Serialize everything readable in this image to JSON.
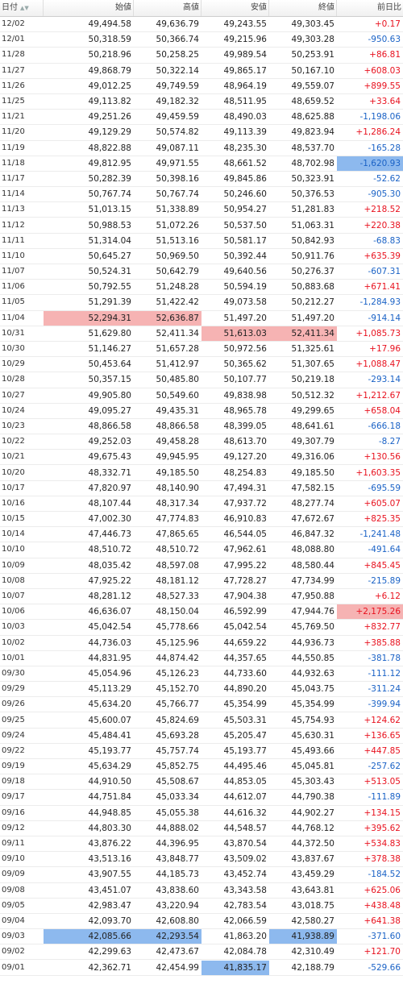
{
  "headers": {
    "date": "日付",
    "open": "始値",
    "high": "高値",
    "low": "安値",
    "close": "終値",
    "change": "前日比",
    "sort_icons": "▲▼"
  },
  "rows": [
    {
      "date": "12/02",
      "open": "49,494.58",
      "high": "49,636.79",
      "low": "49,243.55",
      "close": "49,303.45",
      "change": "+0.17",
      "dir": "up"
    },
    {
      "date": "12/01",
      "open": "50,318.59",
      "high": "50,366.74",
      "low": "49,215.96",
      "close": "49,303.28",
      "change": "-950.63",
      "dir": "dn"
    },
    {
      "date": "11/28",
      "open": "50,218.96",
      "high": "50,258.25",
      "low": "49,989.54",
      "close": "50,253.91",
      "change": "+86.81",
      "dir": "up"
    },
    {
      "date": "11/27",
      "open": "49,868.79",
      "high": "50,322.14",
      "low": "49,865.17",
      "close": "50,167.10",
      "change": "+608.03",
      "dir": "up"
    },
    {
      "date": "11/26",
      "open": "49,012.25",
      "high": "49,749.59",
      "low": "48,964.19",
      "close": "49,559.07",
      "change": "+899.55",
      "dir": "up"
    },
    {
      "date": "11/25",
      "open": "49,113.82",
      "high": "49,182.32",
      "low": "48,511.95",
      "close": "48,659.52",
      "change": "+33.64",
      "dir": "up"
    },
    {
      "date": "11/21",
      "open": "49,251.26",
      "high": "49,459.59",
      "low": "48,490.03",
      "close": "48,625.88",
      "change": "-1,198.06",
      "dir": "dn"
    },
    {
      "date": "11/20",
      "open": "49,129.29",
      "high": "50,574.82",
      "low": "49,113.39",
      "close": "49,823.94",
      "change": "+1,286.24",
      "dir": "up"
    },
    {
      "date": "11/19",
      "open": "48,822.88",
      "high": "49,087.11",
      "low": "48,235.30",
      "close": "48,537.70",
      "change": "-165.28",
      "dir": "dn"
    },
    {
      "date": "11/18",
      "open": "49,812.95",
      "high": "49,971.55",
      "low": "48,661.52",
      "close": "48,702.98",
      "change": "-1,620.93",
      "dir": "dn",
      "hl": {
        "change": "blue"
      }
    },
    {
      "date": "11/17",
      "open": "50,282.39",
      "high": "50,398.16",
      "low": "49,845.86",
      "close": "50,323.91",
      "change": "-52.62",
      "dir": "dn"
    },
    {
      "date": "11/14",
      "open": "50,767.74",
      "high": "50,767.74",
      "low": "50,246.60",
      "close": "50,376.53",
      "change": "-905.30",
      "dir": "dn"
    },
    {
      "date": "11/13",
      "open": "51,013.15",
      "high": "51,338.89",
      "low": "50,954.27",
      "close": "51,281.83",
      "change": "+218.52",
      "dir": "up"
    },
    {
      "date": "11/12",
      "open": "50,988.53",
      "high": "51,072.26",
      "low": "50,537.50",
      "close": "51,063.31",
      "change": "+220.38",
      "dir": "up"
    },
    {
      "date": "11/11",
      "open": "51,314.04",
      "high": "51,513.16",
      "low": "50,581.17",
      "close": "50,842.93",
      "change": "-68.83",
      "dir": "dn"
    },
    {
      "date": "11/10",
      "open": "50,645.27",
      "high": "50,969.50",
      "low": "50,392.44",
      "close": "50,911.76",
      "change": "+635.39",
      "dir": "up"
    },
    {
      "date": "11/07",
      "open": "50,524.31",
      "high": "50,642.79",
      "low": "49,640.56",
      "close": "50,276.37",
      "change": "-607.31",
      "dir": "dn"
    },
    {
      "date": "11/06",
      "open": "50,792.55",
      "high": "51,248.28",
      "low": "50,594.19",
      "close": "50,883.68",
      "change": "+671.41",
      "dir": "up"
    },
    {
      "date": "11/05",
      "open": "51,291.39",
      "high": "51,422.42",
      "low": "49,073.58",
      "close": "50,212.27",
      "change": "-1,284.93",
      "dir": "dn"
    },
    {
      "date": "11/04",
      "open": "52,294.31",
      "high": "52,636.87",
      "low": "51,497.20",
      "close": "51,497.20",
      "change": "-914.14",
      "dir": "dn",
      "hl": {
        "open": "red",
        "high": "red"
      }
    },
    {
      "date": "10/31",
      "open": "51,629.80",
      "high": "52,411.34",
      "low": "51,613.03",
      "close": "52,411.34",
      "change": "+1,085.73",
      "dir": "up",
      "hl": {
        "low": "red",
        "close": "red"
      }
    },
    {
      "date": "10/30",
      "open": "51,146.27",
      "high": "51,657.28",
      "low": "50,972.56",
      "close": "51,325.61",
      "change": "+17.96",
      "dir": "up"
    },
    {
      "date": "10/29",
      "open": "50,453.64",
      "high": "51,412.97",
      "low": "50,365.62",
      "close": "51,307.65",
      "change": "+1,088.47",
      "dir": "up"
    },
    {
      "date": "10/28",
      "open": "50,357.15",
      "high": "50,485.80",
      "low": "50,107.77",
      "close": "50,219.18",
      "change": "-293.14",
      "dir": "dn"
    },
    {
      "date": "10/27",
      "open": "49,905.80",
      "high": "50,549.60",
      "low": "49,838.98",
      "close": "50,512.32",
      "change": "+1,212.67",
      "dir": "up"
    },
    {
      "date": "10/24",
      "open": "49,095.27",
      "high": "49,435.31",
      "low": "48,965.78",
      "close": "49,299.65",
      "change": "+658.04",
      "dir": "up"
    },
    {
      "date": "10/23",
      "open": "48,866.58",
      "high": "48,866.58",
      "low": "48,399.05",
      "close": "48,641.61",
      "change": "-666.18",
      "dir": "dn"
    },
    {
      "date": "10/22",
      "open": "49,252.03",
      "high": "49,458.28",
      "low": "48,613.70",
      "close": "49,307.79",
      "change": "-8.27",
      "dir": "dn"
    },
    {
      "date": "10/21",
      "open": "49,675.43",
      "high": "49,945.95",
      "low": "49,127.20",
      "close": "49,316.06",
      "change": "+130.56",
      "dir": "up"
    },
    {
      "date": "10/20",
      "open": "48,332.71",
      "high": "49,185.50",
      "low": "48,254.83",
      "close": "49,185.50",
      "change": "+1,603.35",
      "dir": "up"
    },
    {
      "date": "10/17",
      "open": "47,820.97",
      "high": "48,140.90",
      "low": "47,494.31",
      "close": "47,582.15",
      "change": "-695.59",
      "dir": "dn"
    },
    {
      "date": "10/16",
      "open": "48,107.44",
      "high": "48,317.34",
      "low": "47,937.72",
      "close": "48,277.74",
      "change": "+605.07",
      "dir": "up"
    },
    {
      "date": "10/15",
      "open": "47,002.30",
      "high": "47,774.83",
      "low": "46,910.83",
      "close": "47,672.67",
      "change": "+825.35",
      "dir": "up"
    },
    {
      "date": "10/14",
      "open": "47,446.73",
      "high": "47,865.65",
      "low": "46,544.05",
      "close": "46,847.32",
      "change": "-1,241.48",
      "dir": "dn"
    },
    {
      "date": "10/10",
      "open": "48,510.72",
      "high": "48,510.72",
      "low": "47,962.61",
      "close": "48,088.80",
      "change": "-491.64",
      "dir": "dn"
    },
    {
      "date": "10/09",
      "open": "48,035.42",
      "high": "48,597.08",
      "low": "47,995.22",
      "close": "48,580.44",
      "change": "+845.45",
      "dir": "up"
    },
    {
      "date": "10/08",
      "open": "47,925.22",
      "high": "48,181.12",
      "low": "47,728.27",
      "close": "47,734.99",
      "change": "-215.89",
      "dir": "dn"
    },
    {
      "date": "10/07",
      "open": "48,281.12",
      "high": "48,527.33",
      "low": "47,904.38",
      "close": "47,950.88",
      "change": "+6.12",
      "dir": "up"
    },
    {
      "date": "10/06",
      "open": "46,636.07",
      "high": "48,150.04",
      "low": "46,592.99",
      "close": "47,944.76",
      "change": "+2,175.26",
      "dir": "up",
      "hl": {
        "change": "red"
      }
    },
    {
      "date": "10/03",
      "open": "45,042.54",
      "high": "45,778.66",
      "low": "45,042.54",
      "close": "45,769.50",
      "change": "+832.77",
      "dir": "up"
    },
    {
      "date": "10/02",
      "open": "44,736.03",
      "high": "45,125.96",
      "low": "44,659.22",
      "close": "44,936.73",
      "change": "+385.88",
      "dir": "up"
    },
    {
      "date": "10/01",
      "open": "44,831.95",
      "high": "44,874.42",
      "low": "44,357.65",
      "close": "44,550.85",
      "change": "-381.78",
      "dir": "dn"
    },
    {
      "date": "09/30",
      "open": "45,054.96",
      "high": "45,126.23",
      "low": "44,733.60",
      "close": "44,932.63",
      "change": "-111.12",
      "dir": "dn"
    },
    {
      "date": "09/29",
      "open": "45,113.29",
      "high": "45,152.70",
      "low": "44,890.20",
      "close": "45,043.75",
      "change": "-311.24",
      "dir": "dn"
    },
    {
      "date": "09/26",
      "open": "45,634.20",
      "high": "45,766.77",
      "low": "45,354.99",
      "close": "45,354.99",
      "change": "-399.94",
      "dir": "dn"
    },
    {
      "date": "09/25",
      "open": "45,600.07",
      "high": "45,824.69",
      "low": "45,503.31",
      "close": "45,754.93",
      "change": "+124.62",
      "dir": "up"
    },
    {
      "date": "09/24",
      "open": "45,484.41",
      "high": "45,693.28",
      "low": "45,205.47",
      "close": "45,630.31",
      "change": "+136.65",
      "dir": "up"
    },
    {
      "date": "09/22",
      "open": "45,193.77",
      "high": "45,757.74",
      "low": "45,193.77",
      "close": "45,493.66",
      "change": "+447.85",
      "dir": "up"
    },
    {
      "date": "09/19",
      "open": "45,634.29",
      "high": "45,852.75",
      "low": "44,495.46",
      "close": "45,045.81",
      "change": "-257.62",
      "dir": "dn"
    },
    {
      "date": "09/18",
      "open": "44,910.50",
      "high": "45,508.67",
      "low": "44,853.05",
      "close": "45,303.43",
      "change": "+513.05",
      "dir": "up"
    },
    {
      "date": "09/17",
      "open": "44,751.84",
      "high": "45,033.34",
      "low": "44,612.07",
      "close": "44,790.38",
      "change": "-111.89",
      "dir": "dn"
    },
    {
      "date": "09/16",
      "open": "44,948.85",
      "high": "45,055.38",
      "low": "44,616.32",
      "close": "44,902.27",
      "change": "+134.15",
      "dir": "up"
    },
    {
      "date": "09/12",
      "open": "44,803.30",
      "high": "44,888.02",
      "low": "44,548.57",
      "close": "44,768.12",
      "change": "+395.62",
      "dir": "up"
    },
    {
      "date": "09/11",
      "open": "43,876.22",
      "high": "44,396.95",
      "low": "43,870.54",
      "close": "44,372.50",
      "change": "+534.83",
      "dir": "up"
    },
    {
      "date": "09/10",
      "open": "43,513.16",
      "high": "43,848.77",
      "low": "43,509.02",
      "close": "43,837.67",
      "change": "+378.38",
      "dir": "up"
    },
    {
      "date": "09/09",
      "open": "43,907.55",
      "high": "44,185.73",
      "low": "43,452.74",
      "close": "43,459.29",
      "change": "-184.52",
      "dir": "dn"
    },
    {
      "date": "09/08",
      "open": "43,451.07",
      "high": "43,838.60",
      "low": "43,343.58",
      "close": "43,643.81",
      "change": "+625.06",
      "dir": "up"
    },
    {
      "date": "09/05",
      "open": "42,983.47",
      "high": "43,220.94",
      "low": "42,783.54",
      "close": "43,018.75",
      "change": "+438.48",
      "dir": "up"
    },
    {
      "date": "09/04",
      "open": "42,093.70",
      "high": "42,608.80",
      "low": "42,066.59",
      "close": "42,580.27",
      "change": "+641.38",
      "dir": "up"
    },
    {
      "date": "09/03",
      "open": "42,085.66",
      "high": "42,293.54",
      "low": "41,863.20",
      "close": "41,938.89",
      "change": "-371.60",
      "dir": "dn",
      "hl": {
        "open": "blue",
        "high": "blue",
        "close": "blue"
      }
    },
    {
      "date": "09/02",
      "open": "42,299.63",
      "high": "42,473.67",
      "low": "42,084.78",
      "close": "42,310.49",
      "change": "+121.70",
      "dir": "up"
    },
    {
      "date": "09/01",
      "open": "42,362.71",
      "high": "42,454.99",
      "low": "41,835.17",
      "close": "42,188.79",
      "change": "-529.66",
      "dir": "dn",
      "hl": {
        "low": "blue"
      }
    }
  ]
}
